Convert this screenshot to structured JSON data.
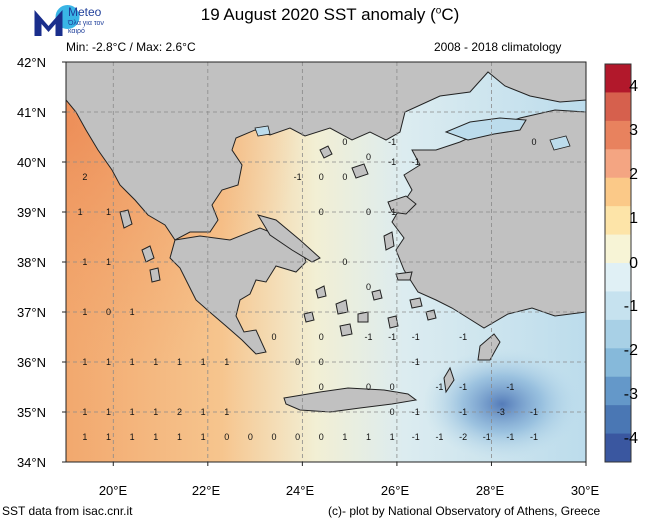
{
  "header": {
    "logo_word": "Meteo",
    "logo_tagline": "Όλα για τον καιρό",
    "title_main": "19 August 2020 SST anomaly (",
    "title_unit": "C)",
    "minmax": "Min: -2.8°C / Max: 2.6°C",
    "climatology": "2008 - 2018 climatology"
  },
  "axes": {
    "lat_labels": [
      "42°N",
      "41°N",
      "40°N",
      "39°N",
      "38°N",
      "37°N",
      "36°N",
      "35°N",
      "34°N"
    ],
    "lon_labels": [
      "20°E",
      "22°E",
      "24°E",
      "26°E",
      "28°E",
      "30°E"
    ]
  },
  "colorbar": {
    "labels": [
      "4",
      "3",
      "2",
      "1",
      "0",
      "-1",
      "-2",
      "-3",
      "-4"
    ],
    "colors": [
      "#b2182b",
      "#d6604d",
      "#e8825e",
      "#f4a582",
      "#fbc988",
      "#fde4a8",
      "#f7f4d6",
      "#e0f0f5",
      "#c6e2ef",
      "#a8d0e6",
      "#86b9da",
      "#6498c9",
      "#4a77b4",
      "#3a57a0"
    ]
  },
  "map_colors": {
    "land": "#c1c1c1",
    "sea_west": "#f2a86e",
    "sea_aegean": "#dcecf0",
    "sea_east": "#bcdcec",
    "sea_cold": "#5f88c2"
  },
  "anomaly_marks": [
    {
      "t": "2",
      "lon": 19.4,
      "lat": 39.7
    },
    {
      "t": "1",
      "lon": 19.3,
      "lat": 39.0
    },
    {
      "t": "1",
      "lon": 19.9,
      "lat": 39.0
    },
    {
      "t": "1",
      "lon": 19.4,
      "lat": 38.0
    },
    {
      "t": "1",
      "lon": 19.9,
      "lat": 38.0
    },
    {
      "t": "1",
      "lon": 19.4,
      "lat": 37.0
    },
    {
      "t": "0",
      "lon": 19.9,
      "lat": 37.0
    },
    {
      "t": "1",
      "lon": 20.4,
      "lat": 37.0
    },
    {
      "t": "1",
      "lon": 19.4,
      "lat": 36.0
    },
    {
      "t": "1",
      "lon": 19.9,
      "lat": 36.0
    },
    {
      "t": "1",
      "lon": 20.4,
      "lat": 36.0
    },
    {
      "t": "1",
      "lon": 20.9,
      "lat": 36.0
    },
    {
      "t": "1",
      "lon": 21.4,
      "lat": 36.0
    },
    {
      "t": "1",
      "lon": 21.9,
      "lat": 36.0
    },
    {
      "t": "1",
      "lon": 22.4,
      "lat": 36.0
    },
    {
      "t": "1",
      "lon": 19.4,
      "lat": 35.0
    },
    {
      "t": "1",
      "lon": 19.9,
      "lat": 35.0
    },
    {
      "t": "1",
      "lon": 20.4,
      "lat": 35.0
    },
    {
      "t": "1",
      "lon": 20.9,
      "lat": 35.0
    },
    {
      "t": "2",
      "lon": 21.4,
      "lat": 35.0
    },
    {
      "t": "1",
      "lon": 21.9,
      "lat": 35.0
    },
    {
      "t": "1",
      "lon": 22.4,
      "lat": 35.0
    },
    {
      "t": "1",
      "lon": 19.4,
      "lat": 34.5
    },
    {
      "t": "1",
      "lon": 19.9,
      "lat": 34.5
    },
    {
      "t": "1",
      "lon": 20.4,
      "lat": 34.5
    },
    {
      "t": "1",
      "lon": 20.9,
      "lat": 34.5
    },
    {
      "t": "1",
      "lon": 21.4,
      "lat": 34.5
    },
    {
      "t": "1",
      "lon": 21.9,
      "lat": 34.5
    },
    {
      "t": "0",
      "lon": 22.4,
      "lat": 34.5
    },
    {
      "t": "0",
      "lon": 22.9,
      "lat": 34.5
    },
    {
      "t": "0",
      "lon": 23.4,
      "lat": 34.5
    },
    {
      "t": "0",
      "lon": 23.9,
      "lat": 34.5
    },
    {
      "t": "0",
      "lon": 24.4,
      "lat": 34.5
    },
    {
      "t": "1",
      "lon": 24.9,
      "lat": 34.5
    },
    {
      "t": "1",
      "lon": 25.4,
      "lat": 34.5
    },
    {
      "t": "1",
      "lon": 25.9,
      "lat": 34.5
    },
    {
      "t": "-1",
      "lon": 26.4,
      "lat": 34.5
    },
    {
      "t": "-1",
      "lon": 26.9,
      "lat": 34.5
    },
    {
      "t": "-2",
      "lon": 27.4,
      "lat": 34.5
    },
    {
      "t": "-1",
      "lon": 27.9,
      "lat": 34.5
    },
    {
      "t": "-1",
      "lon": 28.4,
      "lat": 34.5
    },
    {
      "t": "-1",
      "lon": 28.9,
      "lat": 34.5
    },
    {
      "t": "0",
      "lon": 25.9,
      "lat": 35.0
    },
    {
      "t": "-1",
      "lon": 26.4,
      "lat": 35.0
    },
    {
      "t": "-1",
      "lon": 27.4,
      "lat": 35.0
    },
    {
      "t": "-3",
      "lon": 28.2,
      "lat": 35.0
    },
    {
      "t": "-1",
      "lon": 28.9,
      "lat": 35.0
    },
    {
      "t": "0",
      "lon": 24.4,
      "lat": 35.5
    },
    {
      "t": "0",
      "lon": 25.4,
      "lat": 35.5
    },
    {
      "t": "0",
      "lon": 25.9,
      "lat": 35.5
    },
    {
      "t": "-1",
      "lon": 26.9,
      "lat": 35.5
    },
    {
      "t": "-1",
      "lon": 27.4,
      "lat": 35.5
    },
    {
      "t": "-1",
      "lon": 28.4,
      "lat": 35.5
    },
    {
      "t": "0",
      "lon": 23.9,
      "lat": 36.0
    },
    {
      "t": "0",
      "lon": 24.4,
      "lat": 36.0
    },
    {
      "t": "-1",
      "lon": 26.4,
      "lat": 36.0
    },
    {
      "t": "0",
      "lon": 23.4,
      "lat": 36.5
    },
    {
      "t": "0",
      "lon": 24.4,
      "lat": 36.5
    },
    {
      "t": "-1",
      "lon": 25.4,
      "lat": 36.5
    },
    {
      "t": "-1",
      "lon": 25.9,
      "lat": 36.5
    },
    {
      "t": "-1",
      "lon": 26.4,
      "lat": 36.5
    },
    {
      "t": "-1",
      "lon": 27.4,
      "lat": 36.5
    },
    {
      "t": "0",
      "lon": 25.4,
      "lat": 37.5
    },
    {
      "t": "0",
      "lon": 24.9,
      "lat": 38.0
    },
    {
      "t": "0",
      "lon": 24.4,
      "lat": 39.0
    },
    {
      "t": "0",
      "lon": 25.4,
      "lat": 39.0
    },
    {
      "t": "-1",
      "lon": 25.9,
      "lat": 39.0
    },
    {
      "t": "-1",
      "lon": 23.9,
      "lat": 39.7
    },
    {
      "t": "0",
      "lon": 24.4,
      "lat": 39.7
    },
    {
      "t": "0",
      "lon": 24.9,
      "lat": 39.7
    },
    {
      "t": "0",
      "lon": 25.4,
      "lat": 40.1
    },
    {
      "t": "-1",
      "lon": 25.9,
      "lat": 40.0
    },
    {
      "t": "-1",
      "lon": 26.4,
      "lat": 40.0
    },
    {
      "t": "0",
      "lon": 24.9,
      "lat": 40.4
    },
    {
      "t": "-1",
      "lon": 25.9,
      "lat": 40.4
    },
    {
      "t": "0",
      "lon": 28.9,
      "lat": 40.4
    }
  ],
  "footer": {
    "source": "SST data from isac.cnr.it",
    "credit": "(c)- plot by National Observatory of Athens, Greece"
  }
}
